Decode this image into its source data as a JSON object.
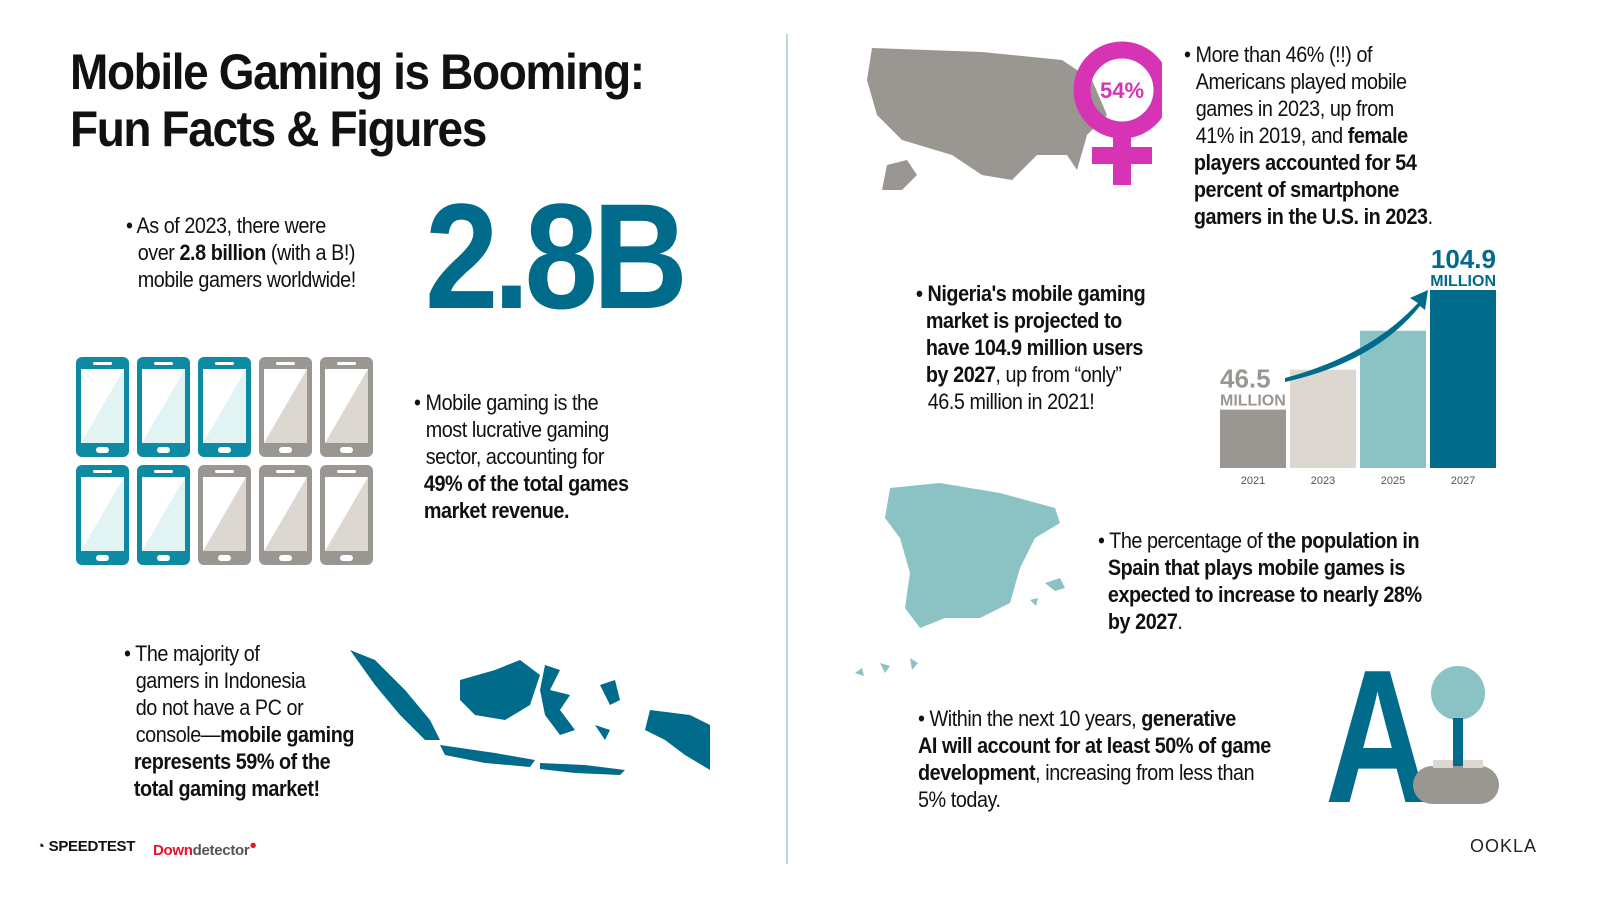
{
  "title_line1": "Mobile Gaming is Booming:",
  "title_line2": "Fun Facts & Figures",
  "fact_gamers": {
    "pre1": "• As of 2023, there were",
    "pre2": "over ",
    "bold": "2.8 billion",
    "post2": " (with a B!)",
    "line3": "mobile gamers worldwide!",
    "big_number": "2.8B"
  },
  "fact_revenue": {
    "l1": "• Mobile gaming is the",
    "l2": "most lucrative gaming",
    "l3": "sector, accounting for",
    "b1": "49% of the total games",
    "b2": "market revenue."
  },
  "phones": {
    "total": 10,
    "highlighted": 5,
    "highlight_color": "#0e8aa3",
    "other_color": "#9a9792"
  },
  "fact_indonesia": {
    "l1": "• The majority of",
    "l2": "gamers in Indonesia",
    "l3": "do not have a PC or",
    "l4a": "console—",
    "l4b": "mobile gaming",
    "b1": "represents 59% of the",
    "b2": "total gaming market!"
  },
  "fact_us": {
    "badge": "54%",
    "l1": "• More than 46% (!!) of",
    "l2": "Americans played mobile",
    "l3": "games in 2023, up from",
    "l4a": "41% in 2019, and ",
    "l4b": "female",
    "b1": "players accounted for 54",
    "b2": "percent of smartphone",
    "b3": "gamers in the U.S. in 2023",
    "end": "."
  },
  "fact_nigeria": {
    "b1": "• Nigeria's mobile gaming",
    "b2": "market is projected to",
    "b3": "have 104.9 million users",
    "b4": "by 2027",
    "l4": ", up from “only”",
    "l5": "46.5 million in 2021!"
  },
  "chart_data": {
    "type": "bar",
    "categories": [
      "2021",
      "2023",
      "2025",
      "2027"
    ],
    "values": [
      46.5,
      66,
      85,
      104.9
    ],
    "ylim": [
      18,
      105
    ],
    "colors": [
      "#9a9792",
      "#dcd8d1",
      "#8bc3c4",
      "#006b8a"
    ],
    "annotations": [
      {
        "value": "46.5",
        "unit": "MILLION",
        "category": "2021"
      },
      {
        "value": "104.9",
        "unit": "MILLION",
        "category": "2027"
      }
    ],
    "grid": false,
    "title": "",
    "xlabel": "",
    "ylabel": ""
  },
  "fact_spain": {
    "l1a": "• The percentage of ",
    "b1": "the population in",
    "b2": "Spain that plays mobile games is",
    "b3": "expected to increase to nearly 28%",
    "b4": "by 2027",
    "end": "."
  },
  "fact_ai": {
    "l1a": "• Within the next 10 years, ",
    "b1": "generative",
    "b2": "AI will account for at least 50% of game",
    "b3": "development",
    "l3": ", increasing from less than",
    "l4": "5% today.",
    "graphic_letter": "A"
  },
  "footer": {
    "speedtest": "SPEEDTEST",
    "down": "Down",
    "detector": "detector",
    "ookla": "OOKLA"
  },
  "colors": {
    "teal_dark": "#006b8a",
    "teal_light": "#8bc3c4",
    "gray": "#9a9792",
    "magenta": "#d633b5"
  }
}
